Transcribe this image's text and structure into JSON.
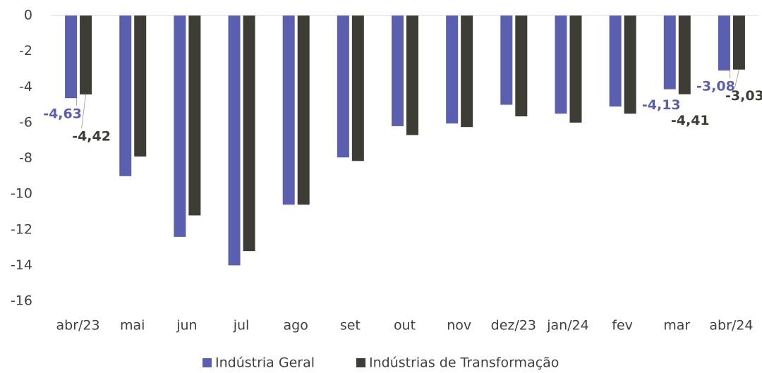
{
  "chart_data": {
    "type": "bar",
    "categories": [
      "abr/23",
      "mai",
      "jun",
      "jul",
      "ago",
      "set",
      "out",
      "nov",
      "dez/23",
      "jan/24",
      "fev",
      "mar",
      "abr/24"
    ],
    "series": [
      {
        "name": "Indústria Geral",
        "color": "#5b5fb0",
        "values": [
          -4.63,
          -9.0,
          -12.4,
          -14.0,
          -10.6,
          -7.95,
          -6.2,
          -6.05,
          -5.0,
          -5.5,
          -5.1,
          -4.13,
          -3.08
        ],
        "value_labels": [
          "-4,63",
          null,
          null,
          null,
          null,
          null,
          null,
          null,
          null,
          null,
          null,
          "-4,13",
          "-3,08"
        ]
      },
      {
        "name": "Indústrias de Transformação",
        "color": "#3d3d36",
        "values": [
          -4.42,
          -7.9,
          -11.2,
          -13.2,
          -10.6,
          -8.15,
          -6.7,
          -6.25,
          -5.65,
          -6.0,
          -5.5,
          -4.41,
          -3.03
        ],
        "value_labels": [
          "-4,42",
          null,
          null,
          null,
          null,
          null,
          null,
          null,
          null,
          null,
          null,
          "-4,41",
          "-3,03"
        ]
      }
    ],
    "ylim": [
      0,
      -16
    ],
    "yticks": [
      0,
      -2,
      -4,
      -6,
      -8,
      -10,
      -12,
      -14,
      -16
    ],
    "legend": "bottom"
  }
}
